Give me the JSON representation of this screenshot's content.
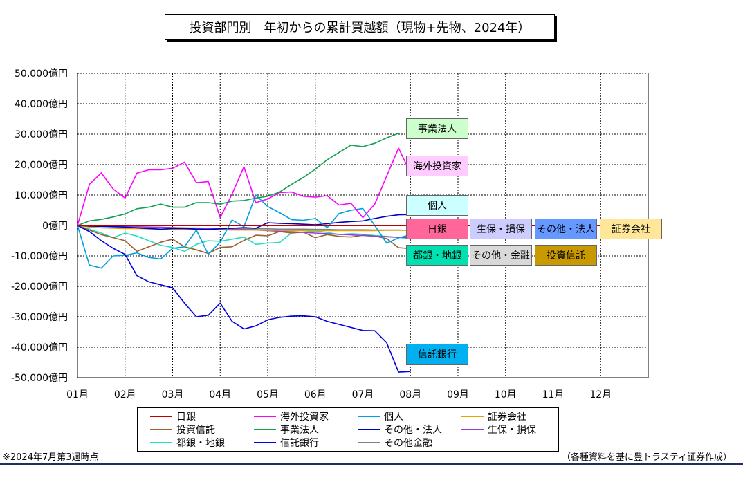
{
  "title": "投資部門別　年初からの累計買越額（現物+先物、2024年）",
  "footnote_left": "※2024年7月第3週時点",
  "footnote_right": "（各種資料を基に豊トラスティ証券作成）",
  "chart_data": {
    "type": "line",
    "x_ticks": [
      "01月",
      "02月",
      "03月",
      "04月",
      "05月",
      "06月",
      "07月",
      "08月",
      "09月",
      "10月",
      "11月",
      "12月"
    ],
    "y_ticks": [
      "50,000億円",
      "40,000億円",
      "30,000億円",
      "20,000億円",
      "10,000億円",
      "0億円",
      "-10,000億円",
      "-20,000億円",
      "-30,000億円",
      "-40,000億円",
      "-50,000億円"
    ],
    "ylim": [
      -50000,
      50000
    ],
    "xlim": [
      0,
      12
    ],
    "grid": true,
    "series": [
      {
        "name": "日銀",
        "color": "#c00000",
        "values": [
          0,
          0,
          0,
          0,
          0,
          0,
          0,
          0,
          0,
          0,
          0,
          0,
          0,
          0,
          0,
          0,
          0,
          0,
          0,
          0,
          0,
          0,
          0,
          0,
          0,
          0,
          0,
          0,
          0,
          0,
          0,
          0,
          0,
          0,
          0,
          0,
          0,
          0,
          0,
          0,
          0,
          0,
          0,
          0,
          0,
          0,
          0
        ]
      },
      {
        "name": "海外投資家",
        "color": "#ff00ff",
        "values": [
          0,
          13500,
          17300,
          12000,
          9000,
          17200,
          18300,
          18300,
          18800,
          20800,
          14100,
          14400,
          2600,
          10300,
          19300,
          7500,
          8700,
          10800,
          11000,
          9600,
          9300,
          9800,
          6700,
          7300,
          2600,
          7000,
          16200,
          25400,
          17300
        ]
      },
      {
        "name": "個人",
        "color": "#00a0e0",
        "values": [
          0,
          -13000,
          -14000,
          -10000,
          -9800,
          -9000,
          -10500,
          -11000,
          -7500,
          -7000,
          -1500,
          -9500,
          -5500,
          1800,
          -400,
          10000,
          6200,
          4200,
          1900,
          1700,
          2300,
          -700,
          3900,
          5000,
          5600,
          0,
          -5800,
          -4100,
          -3000
        ]
      },
      {
        "name": "証券会社",
        "color": "#e8a000",
        "values": [
          0,
          -500,
          -800,
          -900,
          -1000,
          -1000,
          -1100,
          -1200,
          -1300,
          -1300,
          -1300,
          -1400,
          -1400,
          -1500,
          -1500,
          -1500,
          -1600,
          -1600,
          -1700,
          -1700,
          -1700,
          -1700,
          -1700,
          -1700,
          -1700,
          -1700,
          -1600,
          -1600,
          -1600
        ]
      },
      {
        "name": "投資信託",
        "color": "#9a6030",
        "values": [
          0,
          -1500,
          -3000,
          -4000,
          -5000,
          -8500,
          -7000,
          -5500,
          -4500,
          -7000,
          -8000,
          -9200,
          -7200,
          -7000,
          -4900,
          -3200,
          -3400,
          -2000,
          -2500,
          -2200,
          -4000,
          -3000,
          -3600,
          -3800,
          -3200,
          -3500,
          -4300,
          -7300,
          -7600
        ]
      },
      {
        "name": "事業法人",
        "color": "#10a050",
        "values": [
          0,
          1500,
          2000,
          2800,
          3800,
          5500,
          6000,
          7000,
          6000,
          6000,
          7500,
          7500,
          7000,
          8000,
          8200,
          9000,
          9600,
          11000,
          13500,
          15800,
          18500,
          21600,
          24000,
          26400,
          25900,
          27000,
          28800,
          30300
        ]
      },
      {
        "name": "その他・法人",
        "color": "#0000c0",
        "values": [
          0,
          -200,
          -300,
          -400,
          -500,
          -800,
          -1000,
          -1200,
          -1000,
          -1000,
          -1200,
          -1300,
          -1100,
          -900,
          -700,
          -900,
          900,
          700,
          600,
          400,
          200,
          600,
          1000,
          1300,
          1500,
          2300,
          3000,
          3500,
          3600
        ]
      },
      {
        "name": "生保・損保",
        "color": "#9040e0",
        "values": [
          0,
          -100,
          -200,
          -300,
          -300,
          -400,
          -500,
          -600,
          -700,
          -800,
          -900,
          -1000,
          -1100,
          -1200,
          -1300,
          -1500,
          -1700,
          -1900,
          -2100,
          -2300,
          -2500,
          -2700,
          -2900,
          -3100,
          -3300,
          -3500,
          -3700,
          -3900,
          -4000
        ]
      },
      {
        "name": "都銀・地銀",
        "color": "#20e0c0",
        "values": [
          0,
          -1200,
          -2500,
          -4000,
          -2500,
          -3500,
          -5000,
          -6500,
          -7200,
          -8500,
          -6200,
          -5000,
          -5200,
          -4500,
          -3800,
          -6200,
          -5800,
          -5600,
          -2400,
          -2200,
          -1800,
          -2300,
          -3000,
          -2700,
          -2900,
          -3300,
          -3600,
          -3900,
          -4300
        ]
      },
      {
        "name": "信託銀行",
        "color": "#0000e0",
        "values": [
          0,
          -2000,
          -5000,
          -7500,
          -9500,
          -16500,
          -18500,
          -19500,
          -20500,
          -25500,
          -30000,
          -29500,
          -25500,
          -31500,
          -34000,
          -33000,
          -31000,
          -30200,
          -29800,
          -29700,
          -30000,
          -31500,
          -32500,
          -33500,
          -34500,
          -34600,
          -38500,
          -48200,
          -48000
        ]
      },
      {
        "name": "その他金融",
        "color": "#808080",
        "values": [
          0,
          -100,
          -200,
          -300,
          -400,
          -500,
          -600,
          -600,
          -700,
          -800,
          -800,
          -900,
          -900,
          -1000,
          -1000,
          -1100,
          -1100,
          -1200,
          -1200,
          -1200,
          -1300,
          -1300,
          -1400,
          -1400,
          -1400,
          -1500,
          -1500,
          -1500,
          -1600
        ]
      }
    ]
  },
  "end_labels": [
    {
      "text": "事業法人",
      "bg": "#ccffcc"
    },
    {
      "text": "海外投資家",
      "bg": "#ffccff"
    },
    {
      "text": "個人",
      "bg": "#ccffff"
    },
    {
      "text": "日銀",
      "bg": "#ff6699"
    },
    {
      "text": "生保・損保",
      "bg": "#ccccff"
    },
    {
      "text": "その他・法人",
      "bg": "#6699ff"
    },
    {
      "text": "証券会社",
      "bg": "#ffe699"
    },
    {
      "text": "都銀・地銀",
      "bg": "#00e0b0"
    },
    {
      "text": "その他・金融",
      "bg": "#d9d9d9"
    },
    {
      "text": "投資信託",
      "bg": "#c89a00"
    },
    {
      "text": "信託銀行",
      "bg": "#00b0f0"
    }
  ]
}
